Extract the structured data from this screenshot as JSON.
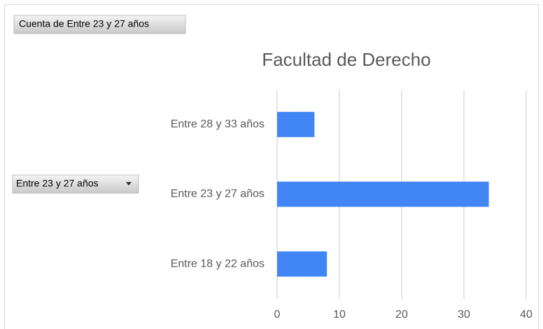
{
  "pivot_buttons": {
    "value_field": "Cuenta de Entre 23 y 27 años",
    "axis_field": "Entre 23 y 27 años"
  },
  "chart_data": {
    "type": "barh",
    "title": "Facultad de Derecho",
    "categories": [
      "Entre 28 y 33 años",
      "Entre 23 y 27 años",
      "Entre 18 y 22 años"
    ],
    "values": [
      6,
      34,
      8
    ],
    "color": "#4285f4",
    "xlim": [
      0,
      40
    ],
    "xticks": [
      0,
      10,
      20,
      30,
      40
    ],
    "grid": true
  }
}
